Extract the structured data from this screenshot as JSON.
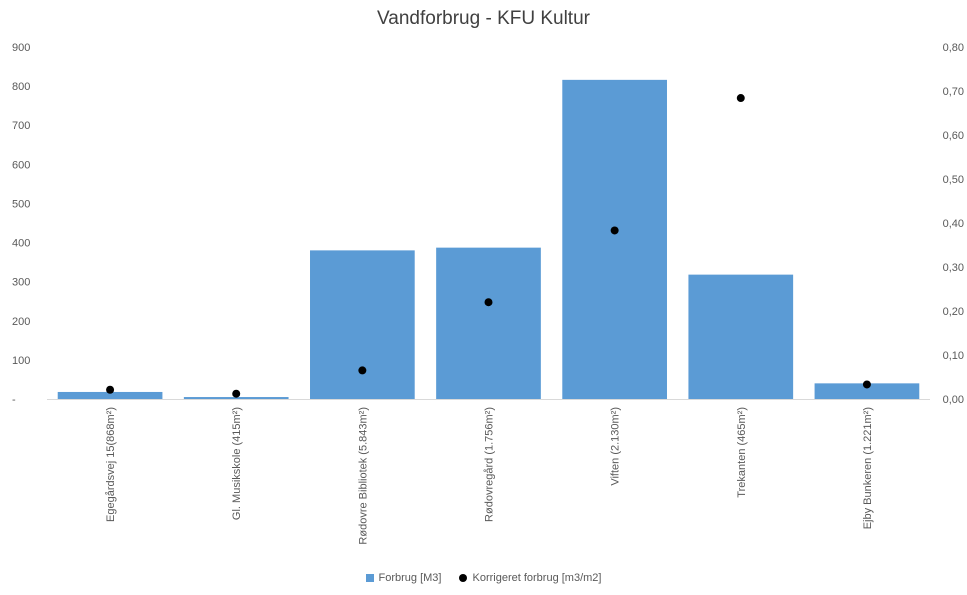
{
  "chart_data": {
    "type": "bar",
    "title": "Vandforbrug - KFU Kultur",
    "categories": [
      "Egegårdsvej 15(868m²)",
      "Gl. Musikskole (415m²)",
      "Rødovre Bibliotek (5.843m²)",
      "Rødovregård (1.756m²)",
      "Viften (2.130m²)",
      "Trekanten (465m²)",
      "Ejby Bunkeren (1.221m²)"
    ],
    "series": [
      {
        "name": "Forbrug [M3]",
        "type": "bar",
        "axis": "left",
        "color": "#5B9BD5",
        "values": [
          18,
          5,
          380,
          387,
          816,
          318,
          40
        ]
      },
      {
        "name": "Korrigeret forbrug [m3/m2]",
        "type": "scatter",
        "axis": "right",
        "color": "#000000",
        "values": [
          0.021,
          0.012,
          0.065,
          0.22,
          0.383,
          0.684,
          0.033
        ]
      }
    ],
    "y_left": {
      "ylim": [
        0,
        900
      ],
      "ticks": [
        "-",
        "100",
        "200",
        "300",
        "400",
        "500",
        "600",
        "700",
        "800",
        "900"
      ]
    },
    "y_right": {
      "ylim": [
        0,
        0.8
      ],
      "ticks": [
        "0,00",
        "0,10",
        "0,20",
        "0,30",
        "0,40",
        "0,50",
        "0,60",
        "0,70",
        "0,80"
      ]
    },
    "grid": false,
    "legend": "bottom"
  }
}
